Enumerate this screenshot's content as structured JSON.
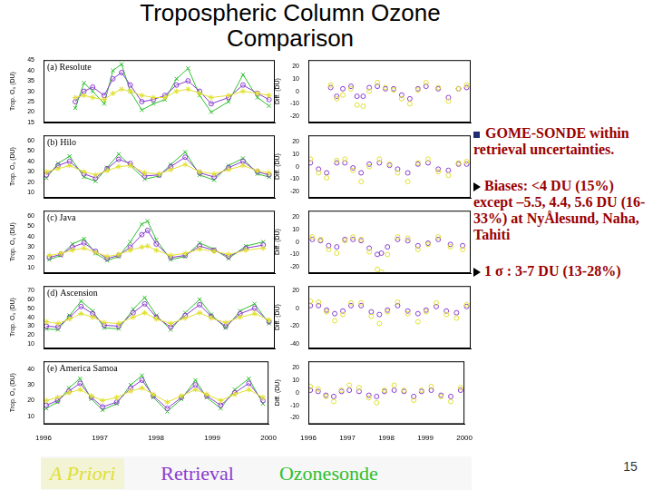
{
  "title": "Tropospheric Column Ozone Comparison",
  "bullets": [
    "GOME-SONDE within retrieval uncertainties.",
    "Biases: <4 DU (15%) except –5.5, 4.4, 5.6 DU (16-33%) at NyÅlesund, Naha, Tahiti",
    "1 σ : 3-7 DU (13-28%)"
  ],
  "page_number": 15,
  "chart_data": [
    {
      "type": "line",
      "title": "(a) Resolute",
      "y_label": "Trop. O₃ (DU)",
      "legend": "bottom",
      "grid": false,
      "tick_labels": "y",
      "x": [
        1996.55,
        1996.7,
        1996.85,
        1997.05,
        1997.2,
        1997.35,
        1997.5,
        1997.7,
        1997.9,
        1998.1,
        1998.3,
        1998.5,
        1998.7,
        1998.9,
        1999.2,
        1999.45,
        1999.7,
        1999.9
      ],
      "xlim": [
        1996,
        2000
      ],
      "xticks": [
        1996,
        1997,
        1998,
        1999,
        2000
      ],
      "ylim": [
        15,
        45
      ],
      "yticks": [
        15,
        20,
        25,
        30,
        35,
        40,
        45
      ],
      "series": [
        {
          "name": "A Priori",
          "color": "#e0e030",
          "marker": "star",
          "values": [
            27,
            28,
            27,
            26,
            29,
            31,
            30,
            28,
            27,
            27,
            30,
            31,
            29,
            27,
            28,
            30,
            29,
            28
          ]
        },
        {
          "name": "Retrieval",
          "color": "#8a3ccf",
          "marker": "circle",
          "values": [
            25,
            30,
            32,
            28,
            36,
            39,
            33,
            25,
            26,
            28,
            33,
            35,
            30,
            24,
            27,
            33,
            29,
            26
          ]
        },
        {
          "name": "Ozonesonde",
          "color": "#2fbf2f",
          "marker": "cross",
          "values": [
            22,
            34,
            30,
            24,
            40,
            43,
            30,
            21,
            24,
            26,
            36,
            41,
            28,
            20,
            25,
            38,
            27,
            23
          ]
        }
      ]
    },
    {
      "type": "line",
      "title": "(b) Hilo",
      "y_label": "Trop. O₃ (DU)",
      "grid": false,
      "tick_labels": "y",
      "x": [
        1996.05,
        1996.25,
        1996.45,
        1996.7,
        1996.9,
        1997.1,
        1997.3,
        1997.5,
        1997.75,
        1998.0,
        1998.2,
        1998.45,
        1998.7,
        1998.95,
        1999.2,
        1999.45,
        1999.7,
        1999.9
      ],
      "xlim": [
        1996,
        2000
      ],
      "xticks": [
        1996,
        1997,
        1998,
        1999,
        2000
      ],
      "ylim": [
        5,
        65
      ],
      "yticks": [
        10,
        20,
        30,
        40,
        50,
        60
      ],
      "series": [
        {
          "name": "A Priori",
          "color": "#e0e030",
          "marker": "star",
          "values": [
            30,
            33,
            36,
            30,
            27,
            31,
            35,
            36,
            29,
            28,
            32,
            37,
            30,
            28,
            32,
            36,
            31,
            29
          ]
        },
        {
          "name": "Retrieval",
          "color": "#8a3ccf",
          "marker": "circle",
          "values": [
            27,
            36,
            40,
            28,
            24,
            33,
            42,
            38,
            26,
            27,
            35,
            44,
            29,
            25,
            34,
            40,
            30,
            27
          ]
        },
        {
          "name": "Ozonesonde",
          "color": "#2fbf2f",
          "marker": "cross",
          "values": [
            24,
            38,
            45,
            25,
            21,
            34,
            47,
            36,
            23,
            26,
            37,
            49,
            27,
            22,
            36,
            43,
            28,
            25
          ]
        }
      ]
    },
    {
      "type": "line",
      "title": "(c) Java",
      "y_label": "Trop. O₃ (DU)",
      "grid": false,
      "tick_labels": "y",
      "x": [
        1996.1,
        1996.3,
        1996.5,
        1996.7,
        1996.9,
        1997.1,
        1997.3,
        1997.5,
        1997.7,
        1997.8,
        1997.95,
        1998.2,
        1998.45,
        1998.7,
        1998.95,
        1999.2,
        1999.5,
        1999.8
      ],
      "xlim": [
        1996,
        2000
      ],
      "xticks": [
        1996,
        1997,
        1998,
        1999,
        2000
      ],
      "ylim": [
        5,
        65
      ],
      "yticks": [
        10,
        20,
        30,
        40,
        50,
        60
      ],
      "series": [
        {
          "name": "A Priori",
          "color": "#e0e030",
          "marker": "star",
          "values": [
            22,
            24,
            27,
            29,
            25,
            21,
            23,
            27,
            30,
            31,
            27,
            22,
            24,
            28,
            26,
            23,
            27,
            29
          ]
        },
        {
          "name": "Retrieval",
          "color": "#8a3ccf",
          "marker": "circle",
          "values": [
            20,
            23,
            30,
            34,
            26,
            19,
            22,
            30,
            42,
            46,
            33,
            20,
            22,
            31,
            27,
            21,
            29,
            32
          ]
        },
        {
          "name": "Ozonesonde",
          "color": "#2fbf2f",
          "marker": "cross",
          "values": [
            18,
            22,
            33,
            38,
            24,
            17,
            21,
            35,
            52,
            55,
            37,
            18,
            21,
            34,
            28,
            19,
            31,
            35
          ]
        }
      ]
    },
    {
      "type": "line",
      "title": "(d) Ascension",
      "y_label": "Trop. O₃ (DU)",
      "grid": false,
      "tick_labels": "y",
      "x": [
        1996.05,
        1996.25,
        1996.45,
        1996.65,
        1996.85,
        1997.05,
        1997.3,
        1997.55,
        1997.75,
        1997.95,
        1998.2,
        1998.45,
        1998.7,
        1998.9,
        1999.15,
        1999.4,
        1999.65,
        1999.9
      ],
      "xlim": [
        1996,
        2000
      ],
      "xticks": [
        1996,
        1997,
        1998,
        1999,
        2000
      ],
      "ylim": [
        5,
        75
      ],
      "yticks": [
        10,
        20,
        30,
        40,
        50,
        60,
        70
      ],
      "series": [
        {
          "name": "A Priori",
          "color": "#e0e030",
          "marker": "star",
          "values": [
            35,
            33,
            38,
            44,
            40,
            34,
            33,
            40,
            45,
            38,
            33,
            39,
            45,
            39,
            34,
            40,
            44,
            37
          ]
        },
        {
          "name": "Retrieval",
          "color": "#8a3ccf",
          "marker": "circle",
          "values": [
            30,
            29,
            40,
            52,
            44,
            31,
            30,
            45,
            55,
            40,
            29,
            42,
            54,
            41,
            30,
            44,
            50,
            35
          ]
        },
        {
          "name": "Ozonesonde",
          "color": "#2fbf2f",
          "marker": "cross",
          "values": [
            27,
            26,
            42,
            58,
            47,
            28,
            27,
            49,
            62,
            42,
            26,
            45,
            60,
            43,
            28,
            47,
            55,
            33
          ]
        }
      ]
    },
    {
      "type": "line",
      "title": "(e) America Samoa",
      "y_label": "Trop. O₃ (DU)",
      "grid": false,
      "x": [
        1996.05,
        1996.25,
        1996.45,
        1996.65,
        1996.85,
        1997.05,
        1997.3,
        1997.55,
        1997.75,
        1997.95,
        1998.2,
        1998.45,
        1998.7,
        1998.9,
        1999.15,
        1999.4,
        1999.65,
        1999.9
      ],
      "xlim": [
        1996,
        2000
      ],
      "xticks": [
        1996,
        1997,
        1998,
        1999,
        2000
      ],
      "ylim": [
        5,
        45
      ],
      "yticks": [
        10,
        20,
        30,
        40
      ],
      "series": [
        {
          "name": "A Priori",
          "color": "#e0e030",
          "marker": "star",
          "values": [
            20,
            22,
            25,
            27,
            23,
            20,
            22,
            26,
            28,
            24,
            19,
            23,
            27,
            24,
            20,
            24,
            27,
            22
          ]
        },
        {
          "name": "Retrieval",
          "color": "#8a3ccf",
          "marker": "circle",
          "values": [
            17,
            20,
            26,
            31,
            22,
            16,
            19,
            28,
            33,
            23,
            15,
            22,
            30,
            23,
            17,
            25,
            31,
            20
          ]
        },
        {
          "name": "Ozonesonde",
          "color": "#2fbf2f",
          "marker": "cross",
          "values": [
            15,
            19,
            28,
            34,
            21,
            14,
            18,
            30,
            36,
            22,
            13,
            21,
            33,
            22,
            15,
            27,
            34,
            18
          ]
        }
      ]
    },
    {
      "type": "scatter",
      "y_label": "Diff. (DU)",
      "grid": false,
      "tick_labels": "y",
      "x": [
        1996.55,
        1996.7,
        1996.85,
        1997.05,
        1997.2,
        1997.35,
        1997.5,
        1997.7,
        1997.9,
        1998.1,
        1998.3,
        1998.5,
        1998.7,
        1998.9,
        1999.2,
        1999.45,
        1999.7,
        1999.9
      ],
      "xlim": [
        1996,
        2000
      ],
      "xticks": [
        1996,
        1997,
        1998,
        1999,
        2000
      ],
      "ylim": [
        -25,
        25
      ],
      "yticks": [
        -20,
        -10,
        0,
        10,
        20
      ],
      "series": [
        {
          "name": "A Priori",
          "color": "#e0e030",
          "marker": "circle",
          "values": [
            5,
            -6,
            -3,
            2,
            -11,
            -12,
            0,
            7,
            3,
            1,
            -6,
            -10,
            1,
            7,
            3,
            -8,
            2,
            5
          ]
        },
        {
          "name": "Retrieval",
          "color": "#8a3ccf",
          "marker": "circle",
          "values": [
            3,
            -4,
            2,
            4,
            -4,
            -4,
            3,
            4,
            2,
            2,
            -3,
            -6,
            2,
            4,
            2,
            -5,
            2,
            3
          ]
        }
      ]
    },
    {
      "type": "scatter",
      "y_label": "Diff. (DU)",
      "grid": false,
      "tick_labels": "y",
      "x": [
        1996.05,
        1996.25,
        1996.45,
        1996.7,
        1996.9,
        1997.1,
        1997.3,
        1997.5,
        1997.75,
        1998.0,
        1998.2,
        1998.45,
        1998.7,
        1998.95,
        1999.2,
        1999.45,
        1999.7,
        1999.9
      ],
      "xlim": [
        1996,
        2000
      ],
      "xticks": [
        1996,
        1997,
        1998,
        1999,
        2000
      ],
      "ylim": [
        -25,
        25
      ],
      "yticks": [
        -20,
        -10,
        0,
        10,
        20
      ],
      "series": [
        {
          "name": "A Priori",
          "color": "#e0e030",
          "marker": "circle",
          "values": [
            6,
            -5,
            -9,
            5,
            6,
            -3,
            -12,
            0,
            6,
            2,
            -5,
            -12,
            3,
            6,
            -4,
            -7,
            3,
            4
          ]
        },
        {
          "name": "Retrieval",
          "color": "#8a3ccf",
          "marker": "circle",
          "values": [
            3,
            -2,
            -5,
            3,
            3,
            -1,
            -5,
            2,
            3,
            1,
            -2,
            -5,
            2,
            3,
            -2,
            -3,
            2,
            2
          ]
        }
      ]
    },
    {
      "type": "scatter",
      "y_label": "Diff. (DU)",
      "grid": false,
      "tick_labels": "y",
      "x": [
        1996.1,
        1996.3,
        1996.5,
        1996.7,
        1996.9,
        1997.1,
        1997.3,
        1997.5,
        1997.7,
        1997.8,
        1997.95,
        1998.2,
        1998.45,
        1998.7,
        1998.95,
        1999.2,
        1999.5,
        1999.8
      ],
      "xlim": [
        1996,
        2000
      ],
      "xticks": [
        1996,
        1997,
        1998,
        1999,
        2000
      ],
      "ylim": [
        -25,
        25
      ],
      "yticks": [
        -20,
        -10,
        0,
        10,
        20
      ],
      "series": [
        {
          "name": "A Priori",
          "color": "#e0e030",
          "marker": "circle",
          "values": [
            4,
            2,
            -6,
            -9,
            1,
            4,
            2,
            -8,
            -22,
            -24,
            -10,
            4,
            3,
            -6,
            -2,
            4,
            -4,
            -6
          ]
        },
        {
          "name": "Retrieval",
          "color": "#8a3ccf",
          "marker": "circle",
          "values": [
            2,
            1,
            -3,
            -4,
            2,
            2,
            1,
            -5,
            -10,
            -9,
            -4,
            2,
            1,
            -3,
            -1,
            2,
            -2,
            -3
          ]
        }
      ]
    },
    {
      "type": "scatter",
      "y_label": "Diff. (DU)",
      "grid": false,
      "tick_labels": "y",
      "x": [
        1996.05,
        1996.25,
        1996.45,
        1996.65,
        1996.85,
        1997.05,
        1997.3,
        1997.55,
        1997.75,
        1997.95,
        1998.2,
        1998.45,
        1998.7,
        1998.9,
        1999.15,
        1999.4,
        1999.65,
        1999.9
      ],
      "xlim": [
        1996,
        2000
      ],
      "xticks": [
        1996,
        1997,
        1998,
        1999,
        2000
      ],
      "ylim": [
        -45,
        25
      ],
      "yticks": [
        -40,
        -20,
        0,
        20
      ],
      "series": [
        {
          "name": "A Priori",
          "color": "#e0e030",
          "marker": "circle",
          "values": [
            8,
            7,
            -4,
            -14,
            -7,
            6,
            6,
            -9,
            -17,
            -4,
            7,
            -6,
            -15,
            -4,
            6,
            -7,
            -11,
            4
          ]
        },
        {
          "name": "Retrieval",
          "color": "#8a3ccf",
          "marker": "circle",
          "values": [
            3,
            3,
            -2,
            -6,
            -3,
            3,
            3,
            -4,
            -7,
            -2,
            3,
            -3,
            -6,
            -2,
            2,
            -3,
            -5,
            2
          ]
        }
      ]
    },
    {
      "type": "scatter",
      "y_label": "Diff. (DU)",
      "grid": false,
      "x": [
        1996.05,
        1996.25,
        1996.45,
        1996.65,
        1996.85,
        1997.05,
        1997.3,
        1997.55,
        1997.75,
        1997.95,
        1998.2,
        1998.45,
        1998.7,
        1998.9,
        1999.15,
        1999.4,
        1999.65,
        1999.9
      ],
      "xlim": [
        1996,
        2000
      ],
      "xticks": [
        1996,
        1997,
        1998,
        1999,
        2000
      ],
      "ylim": [
        -25,
        25
      ],
      "yticks": [
        -20,
        -10,
        0,
        10,
        20
      ],
      "series": [
        {
          "name": "A Priori",
          "color": "#e0e030",
          "marker": "circle",
          "values": [
            5,
            3,
            -3,
            -7,
            2,
            6,
            4,
            -4,
            -8,
            2,
            6,
            2,
            -6,
            2,
            5,
            -3,
            -7,
            4
          ]
        },
        {
          "name": "Retrieval",
          "color": "#8a3ccf",
          "marker": "circle",
          "values": [
            2,
            1,
            -2,
            -3,
            1,
            2,
            1,
            -2,
            -3,
            1,
            2,
            1,
            -3,
            1,
            2,
            -2,
            -3,
            2
          ]
        }
      ]
    }
  ]
}
